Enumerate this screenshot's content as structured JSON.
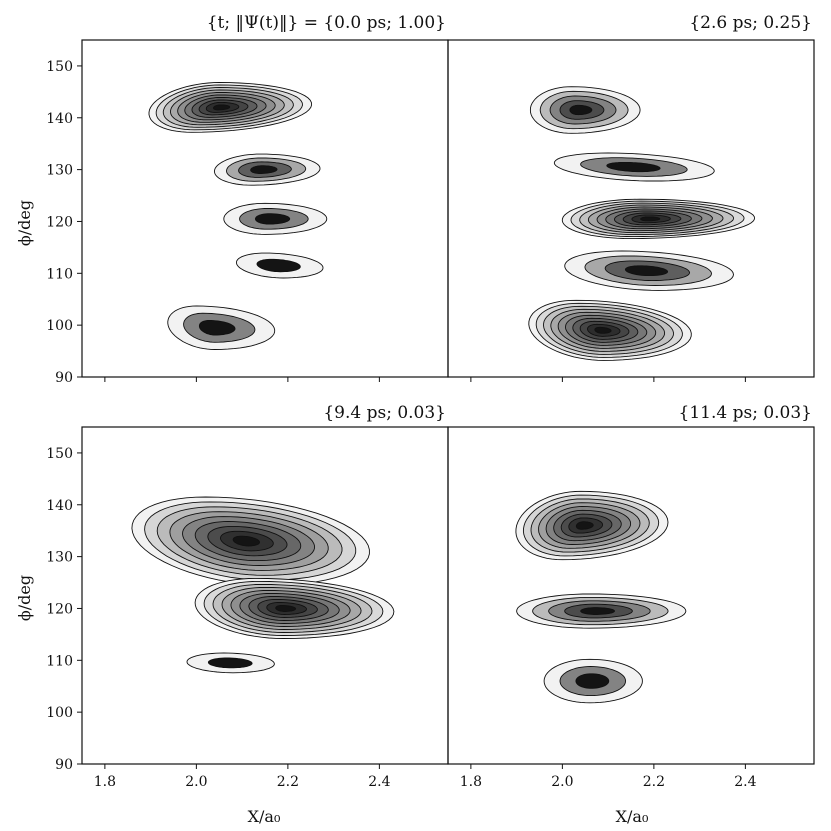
{
  "chart_data": {
    "type": "contour",
    "layout": "2x2 grid, shared axes",
    "xlabel": "X/a₀",
    "ylabel": "ϕ/deg",
    "xlim": [
      1.75,
      2.55
    ],
    "ylim": [
      90,
      155
    ],
    "xticks": [
      1.8,
      2.0,
      2.2,
      2.4
    ],
    "yticks": [
      90,
      100,
      110,
      120,
      130,
      140,
      150
    ],
    "colormap": "greys (white to black)",
    "panels": [
      {
        "title": "{t; ‖Ψ(t)‖} = {0.0 ps; 1.00}",
        "blobs": [
          {
            "x": 2.02,
            "y": 142,
            "levels": 10
          },
          {
            "x": 2.13,
            "y": 130,
            "levels": 4
          },
          {
            "x": 2.15,
            "y": 120.5,
            "levels": 3
          },
          {
            "x": 2.17,
            "y": 111.5,
            "levels": 2
          },
          {
            "x": 2.02,
            "y": 99.5,
            "levels": 3
          }
        ]
      },
      {
        "title": "{2.6 ps; 0.25}",
        "blobs": [
          {
            "x": 2.02,
            "y": 141.5,
            "levels": 5
          },
          {
            "x": 2.15,
            "y": 130.5,
            "levels": 3
          },
          {
            "x": 2.16,
            "y": 120.5,
            "levels": 10
          },
          {
            "x": 2.17,
            "y": 110.5,
            "levels": 4
          },
          {
            "x": 2.06,
            "y": 99,
            "levels": 10
          }
        ]
      },
      {
        "title": "{9.4 ps; 0.03}",
        "blobs": [
          {
            "x": 2.09,
            "y": 133,
            "levels": 9
          },
          {
            "x": 2.16,
            "y": 120,
            "levels": 10
          },
          {
            "x": 2.07,
            "y": 109.5,
            "levels": 2
          }
        ]
      },
      {
        "title": "{11.4 ps; 0.03}",
        "blobs": [
          {
            "x": 2.02,
            "y": 136,
            "levels": 9
          },
          {
            "x": 2.06,
            "y": 119.5,
            "levels": 5
          },
          {
            "x": 2.06,
            "y": 106,
            "levels": 3
          }
        ]
      }
    ]
  }
}
